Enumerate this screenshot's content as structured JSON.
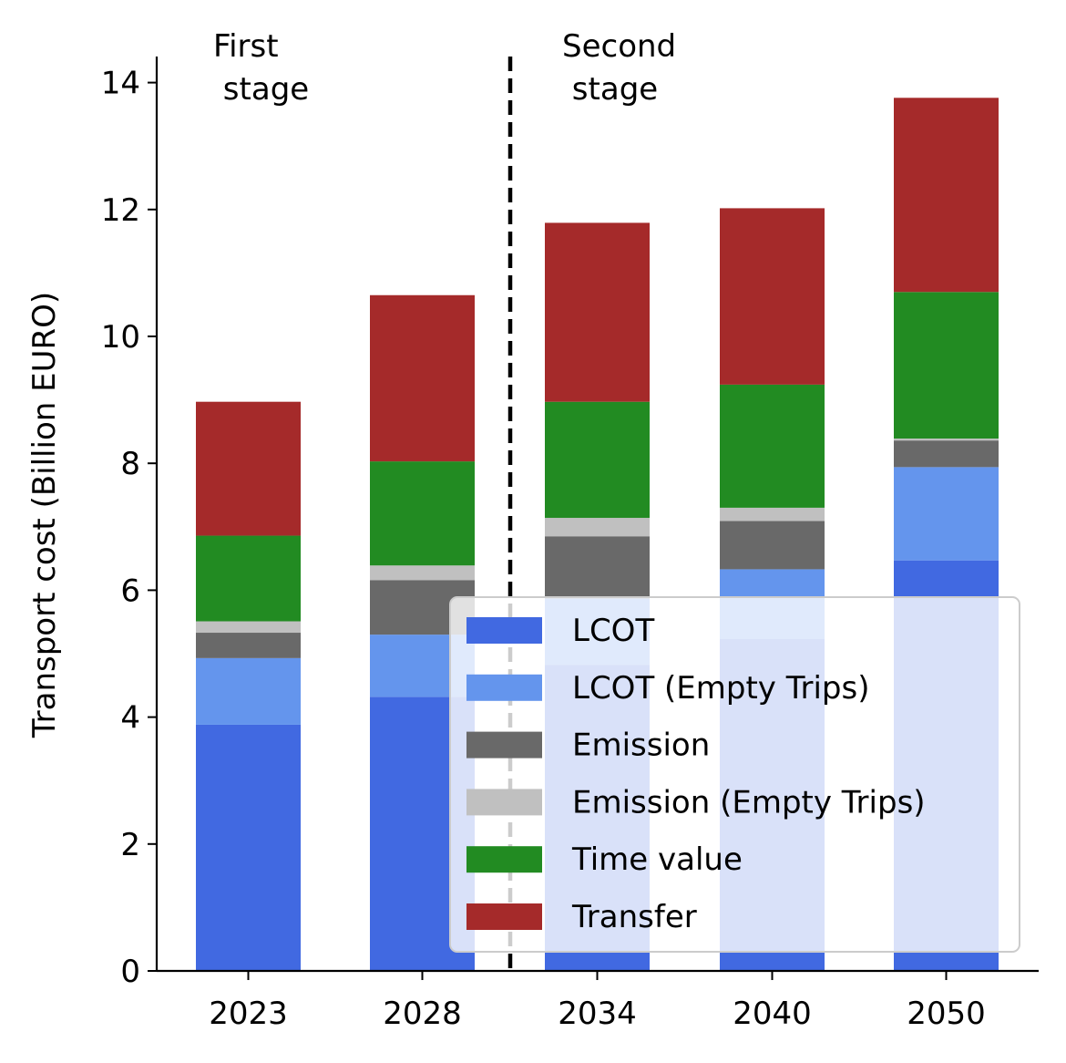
{
  "chart_data": {
    "type": "bar",
    "stacked": true,
    "categories": [
      "2023",
      "2028",
      "2034",
      "2040",
      "2050"
    ],
    "series": [
      {
        "name": "LCOT",
        "color": "#4169e1",
        "values": [
          3.88,
          4.32,
          4.82,
          5.23,
          6.47
        ]
      },
      {
        "name": "LCOT (Empty Trips)",
        "color": "#6495ed",
        "values": [
          1.05,
          0.98,
          1.05,
          1.1,
          1.47
        ]
      },
      {
        "name": "Emission",
        "color": "#696969",
        "values": [
          0.4,
          0.86,
          0.98,
          0.76,
          0.42
        ]
      },
      {
        "name": "Emission (Empty Trips)",
        "color": "#c0c0c0",
        "values": [
          0.18,
          0.23,
          0.29,
          0.21,
          0.03
        ]
      },
      {
        "name": "Time value",
        "color": "#228b22",
        "values": [
          1.35,
          1.64,
          1.83,
          1.94,
          2.31
        ]
      },
      {
        "name": "Transfer",
        "color": "#a52a2a",
        "values": [
          2.11,
          2.62,
          2.82,
          2.78,
          3.06
        ]
      }
    ],
    "xlabel": "",
    "ylabel": "Transport cost (Billion EURO)",
    "ylim": [
      0,
      14.45
    ],
    "yticks": [
      0,
      2,
      4,
      6,
      8,
      10,
      12,
      14
    ],
    "grid": false,
    "legend_position": "lower-right",
    "stage_divider_between": [
      "2028",
      "2034"
    ],
    "annotations": [
      "First\n stage",
      "Second\n stage"
    ]
  }
}
